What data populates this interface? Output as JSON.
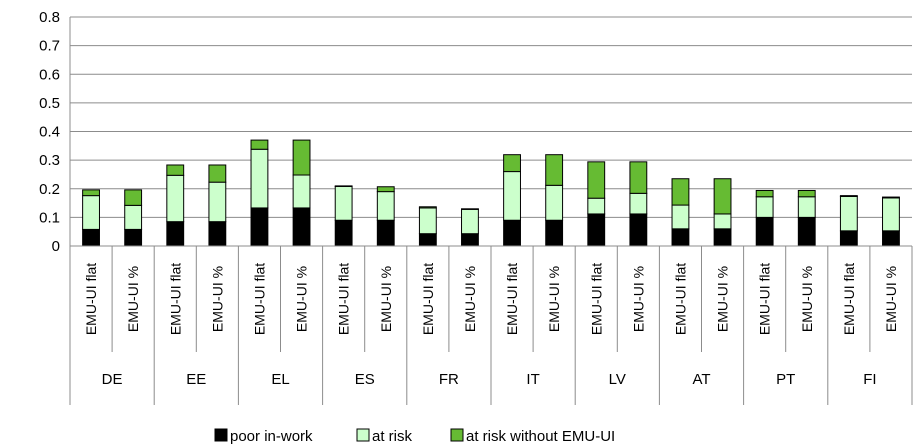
{
  "chart_data": {
    "type": "bar",
    "stacked": true,
    "title": "",
    "xlabel": "",
    "ylabel": "",
    "ylim": [
      0,
      0.8
    ],
    "yticks": [
      "0",
      "0.1",
      "0.2",
      "0.3",
      "0.4",
      "0.5",
      "0.6",
      "0.7",
      "0.8"
    ],
    "grid": true,
    "legend_position": "bottom",
    "groups": [
      "DE",
      "EE",
      "EL",
      "ES",
      "FR",
      "IT",
      "LV",
      "AT",
      "PT",
      "FI"
    ],
    "subcategories": [
      "EMU-UI flat",
      "EMU-UI %"
    ],
    "series": [
      {
        "name": "poor in-work",
        "color": "#000000",
        "values": [
          0.058,
          0.058,
          0.085,
          0.085,
          0.133,
          0.133,
          0.09,
          0.09,
          0.043,
          0.043,
          0.09,
          0.09,
          0.112,
          0.112,
          0.06,
          0.06,
          0.1,
          0.1,
          0.053,
          0.053
        ]
      },
      {
        "name": "at risk",
        "color": "#ccffcc",
        "values": [
          0.118,
          0.084,
          0.162,
          0.138,
          0.205,
          0.115,
          0.118,
          0.1,
          0.09,
          0.085,
          0.17,
          0.122,
          0.055,
          0.072,
          0.083,
          0.052,
          0.072,
          0.072,
          0.12,
          0.115
        ]
      },
      {
        "name": "at risk without EMU-UI",
        "color": "#66bb33",
        "values": [
          0.02,
          0.054,
          0.036,
          0.06,
          0.032,
          0.122,
          0.002,
          0.017,
          0.004,
          0.002,
          0.059,
          0.107,
          0.127,
          0.11,
          0.092,
          0.123,
          0.022,
          0.022,
          0.003,
          0.003
        ]
      }
    ]
  }
}
